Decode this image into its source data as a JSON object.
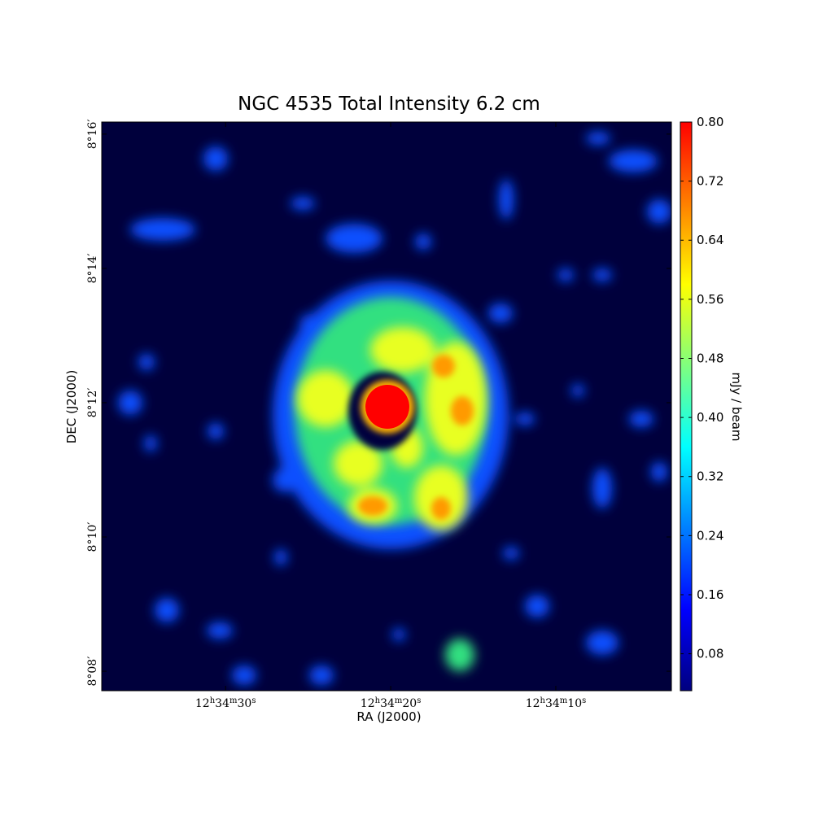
{
  "chart_data": {
    "type": "image",
    "title": "NGC 4535 Total Intensity 6.2 cm",
    "x_label": "RA (J2000)",
    "y_label": "DEC (J2000)",
    "xlim": [
      45277.5,
      45243.0
    ],
    "xticks": [
      {
        "value": 45270,
        "label": "12h34m30s"
      },
      {
        "value": 45260,
        "label": "12h34m20s"
      },
      {
        "value": 45250,
        "label": "12h34m10s"
      }
    ],
    "ylim": [
      487.71,
      496.18
    ],
    "yticks": [
      {
        "value": 488,
        "label": "8°08′"
      },
      {
        "value": 490,
        "label": "8°10′"
      },
      {
        "value": 492,
        "label": "8°12′"
      },
      {
        "value": 494,
        "label": "8°14′"
      },
      {
        "value": 496,
        "label": "8°16′"
      }
    ],
    "colorbar": {
      "label": "mJy / beam",
      "colormap": "jet",
      "clim": [
        0.03,
        0.8
      ],
      "ticks": [
        0.08,
        0.16,
        0.24,
        0.32,
        {
          "value": 0.4,
          "label": "0.40"
        },
        0.48,
        0.56,
        0.64,
        0.72,
        {
          "value": 0.8,
          "label": "0.80"
        }
      ]
    }
  }
}
